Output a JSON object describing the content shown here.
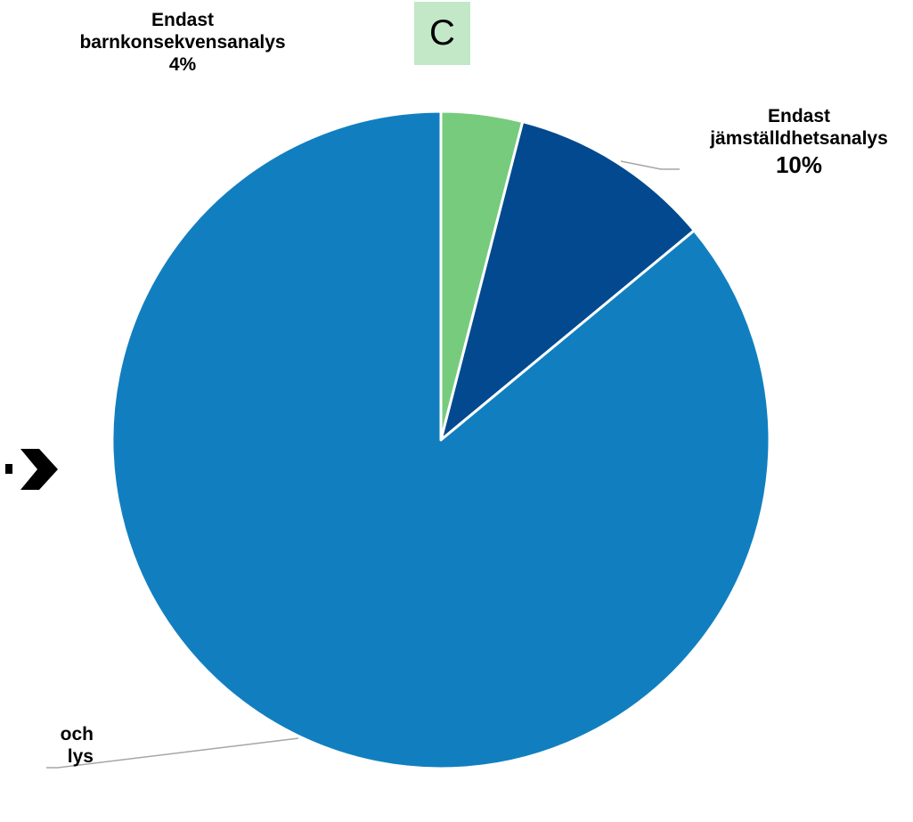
{
  "panel_letter": "C",
  "chart_data": {
    "type": "pie",
    "start_angle": "top",
    "direction": "clockwise",
    "slices": [
      {
        "name_lines": [
          "Endast",
          "barnkonsekvensanalys"
        ],
        "value": 4,
        "value_label": "4%",
        "color": "#77cb7d"
      },
      {
        "name_lines": [
          "Endast",
          "jämställdhetsanalys"
        ],
        "value": 10,
        "value_label": "10%",
        "color": "#03498f"
      },
      {
        "name_lines": [
          "och",
          "lys"
        ],
        "value": 86,
        "value_label": "",
        "color": "#117fbf"
      }
    ]
  },
  "colors": {
    "slice_border": "#ffffff",
    "leader_line": "#a6a6a6",
    "arrow": "#000000",
    "panel_box": "#c2e8c8"
  },
  "icons": {
    "arrow": "dashed-right-arrow-icon"
  }
}
